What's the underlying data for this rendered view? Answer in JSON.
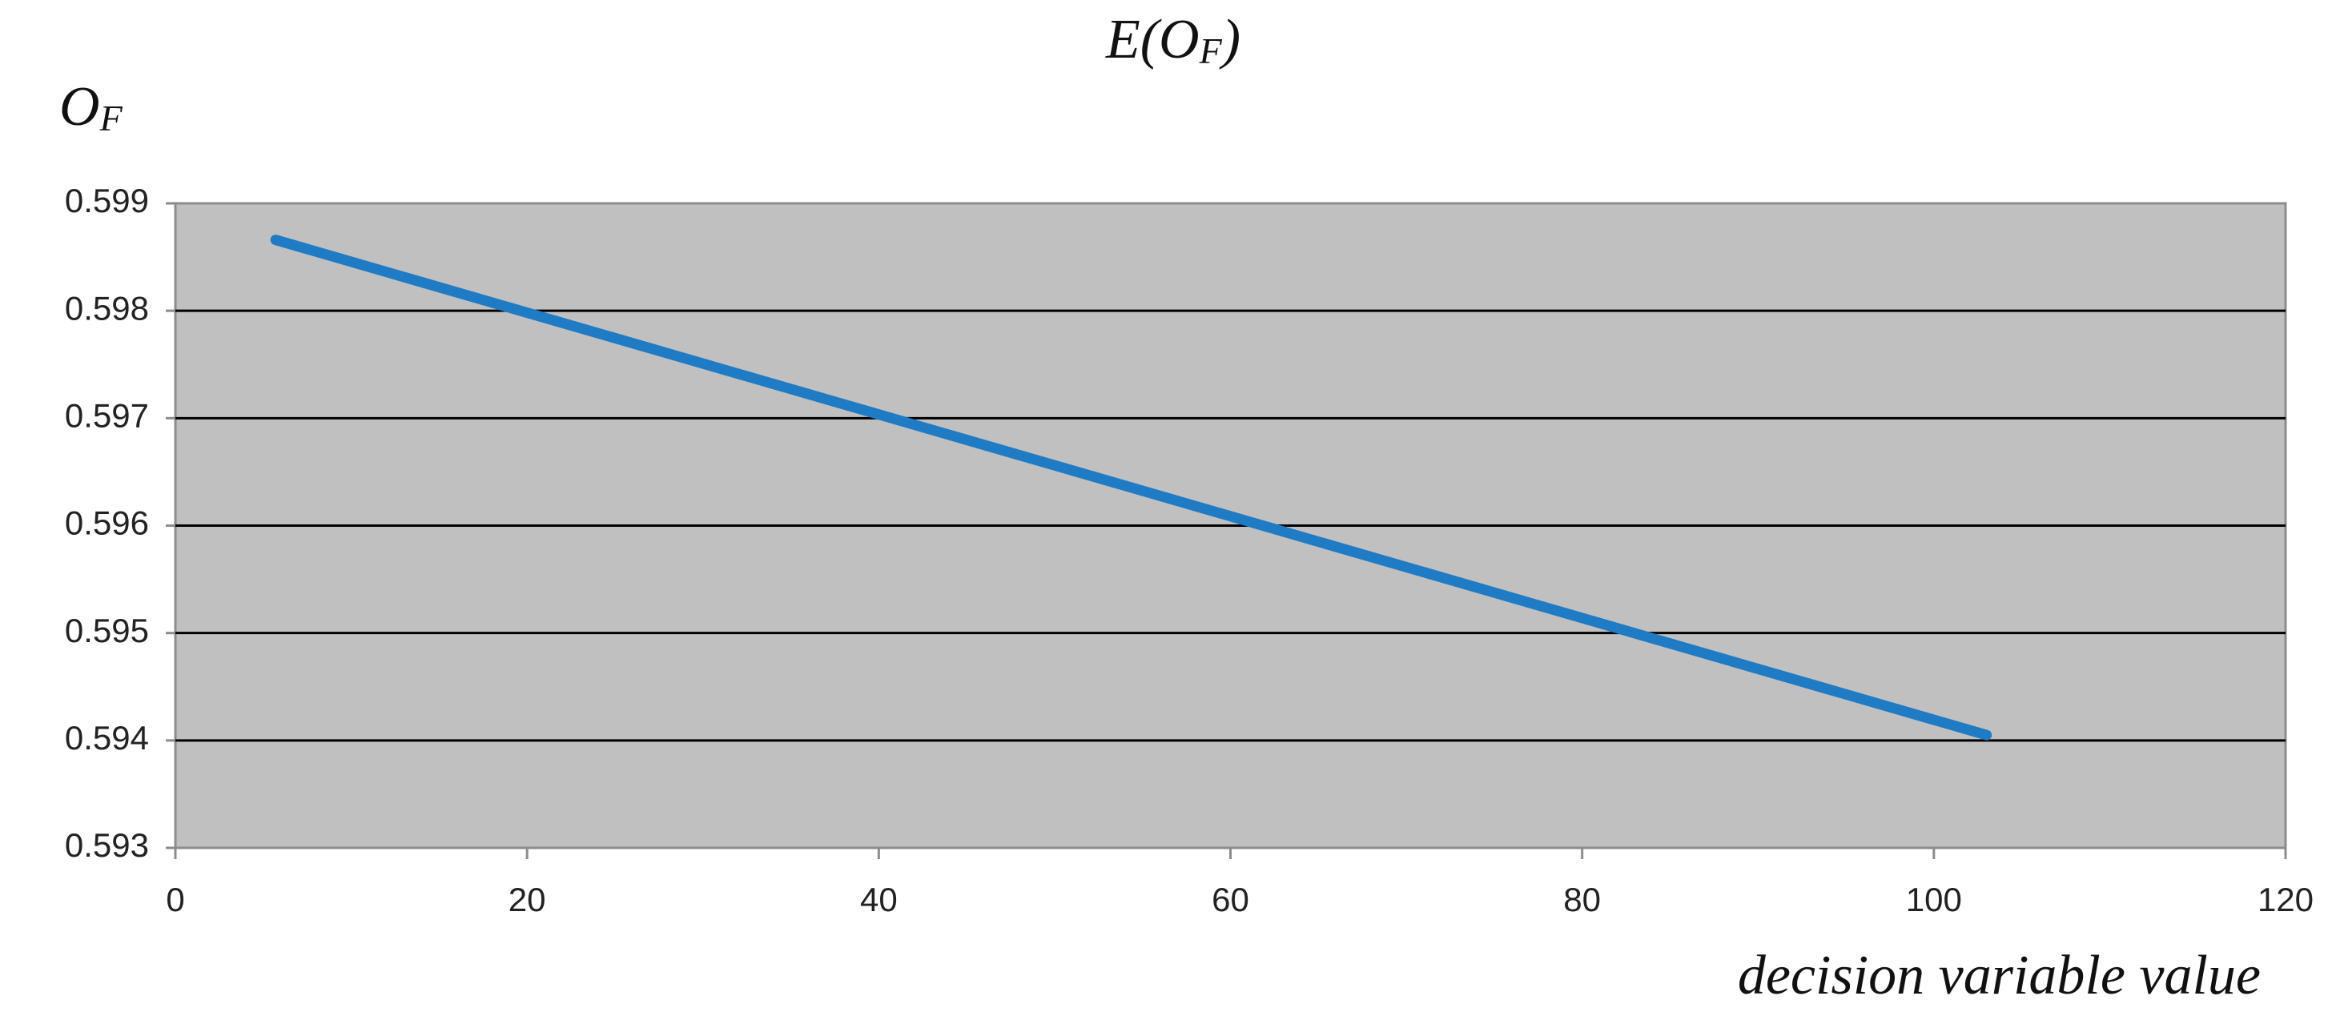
{
  "chart_data": {
    "type": "line",
    "title": [
      "E(O",
      "F",
      ")"
    ],
    "y_label": [
      "O",
      "F"
    ],
    "x_label": "decision variable value",
    "x": [
      5.7,
      103
    ],
    "series": [
      {
        "color": "#1f7bc4",
        "values": [
          0.59866,
          0.59405
        ]
      }
    ],
    "xlim": [
      0,
      120
    ],
    "xticks": [
      0,
      20,
      40,
      60,
      80,
      100,
      120
    ],
    "ylim": [
      0.593,
      0.599
    ],
    "yticks": [
      0.593,
      0.594,
      0.595,
      0.596,
      0.597,
      0.598,
      0.599
    ],
    "grid": true,
    "plot_background": "#c0c0c0"
  }
}
